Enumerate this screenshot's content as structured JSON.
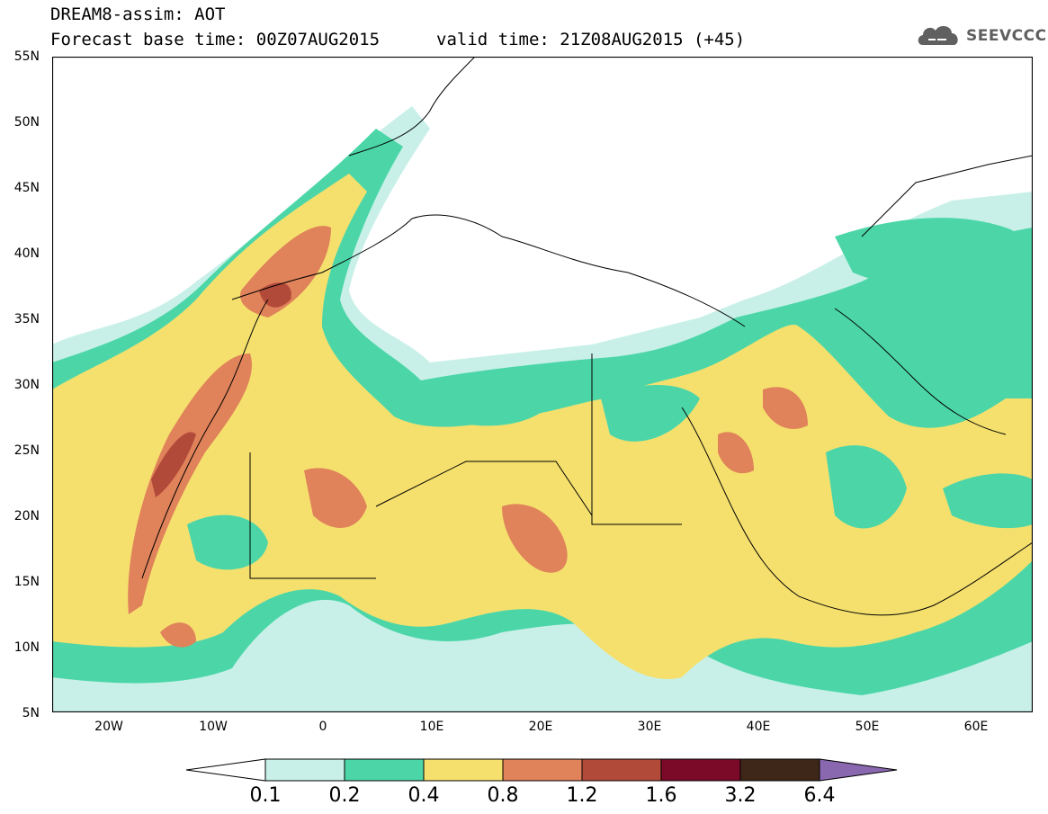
{
  "header": {
    "line1": "DREAM8-assim: AOT",
    "line2": "Forecast base time: 00Z07AUG2015",
    "valid": "valid time: 21Z08AUG2015 (+45)"
  },
  "logo": {
    "text": "SEEVCCC",
    "icon": "cloud-icon"
  },
  "map": {
    "projection": "lat-lon",
    "lat_range": [
      5,
      55
    ],
    "lon_range": [
      -25,
      65
    ],
    "lat_labels": [
      "55N",
      "50N",
      "45N",
      "40N",
      "35N",
      "30N",
      "25N",
      "20N",
      "15N",
      "10N",
      "5N"
    ],
    "lon_labels": [
      "20W",
      "10W",
      "0",
      "10E",
      "20E",
      "30E",
      "40E",
      "50E",
      "60E"
    ]
  },
  "colorbar": {
    "labels": [
      "0.1",
      "0.2",
      "0.4",
      "0.8",
      "1.2",
      "1.6",
      "3.2",
      "6.4"
    ],
    "colors": [
      "#ffffff",
      "#c8f0e8",
      "#4cd6a8",
      "#f5e06e",
      "#e0825a",
      "#b24a3a",
      "#7a0a28",
      "#3e2718",
      "#8a68b0"
    ]
  }
}
